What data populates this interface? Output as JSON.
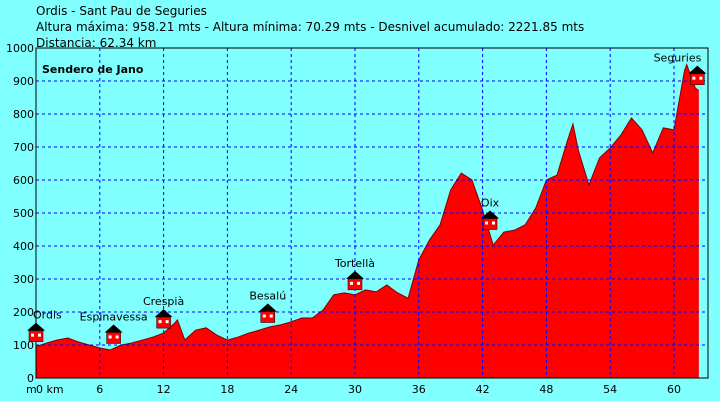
{
  "chart_data": {
    "type": "area",
    "header_lines": [
      "Ordis - Sant Pau de Seguries",
      "Altura máxima: 958.21 mts - Altura mínima: 70.29 mts - Desnivel acumulado: 2221.85 mts",
      "Distancia: 62.34 km"
    ],
    "title": "Sendero de Jano",
    "y_label": "m",
    "color": "#ff0000",
    "grid": true,
    "xlim": [
      0,
      63.2
    ],
    "ylim": [
      0,
      1000
    ],
    "xticks": [
      {
        "value": 0,
        "label": "0 km"
      },
      6,
      12,
      18,
      24,
      30,
      36,
      42,
      48,
      54,
      60
    ],
    "yticks": [
      0,
      100,
      200,
      300,
      400,
      500,
      600,
      700,
      800,
      900,
      1000
    ],
    "x": [
      0,
      1,
      2,
      3,
      4,
      5,
      6,
      7,
      8,
      9,
      10,
      11,
      12,
      13,
      13.3,
      14,
      15,
      16,
      17,
      18,
      19,
      20,
      21,
      22,
      23,
      24,
      25,
      26,
      27,
      28,
      29,
      30,
      31,
      32,
      33,
      34,
      35,
      36,
      37,
      38,
      39,
      40,
      41,
      42,
      43,
      44,
      45,
      46,
      47,
      48,
      49,
      50,
      50.5,
      51,
      52,
      53,
      54,
      55,
      56,
      57,
      58,
      59,
      60,
      61,
      61.2,
      62,
      62.34
    ],
    "values": [
      95,
      106,
      115,
      121,
      109,
      100,
      91,
      85,
      100,
      106,
      115,
      124,
      136,
      165,
      176,
      115,
      145,
      152,
      130,
      115,
      124,
      136,
      145,
      155,
      161,
      170,
      182,
      182,
      206,
      252,
      258,
      252,
      267,
      261,
      282,
      258,
      242,
      358,
      418,
      464,
      570,
      621,
      600,
      509,
      403,
      442,
      448,
      464,
      515,
      600,
      615,
      721,
      770,
      691,
      585,
      667,
      697,
      736,
      788,
      752,
      682,
      758,
      752,
      933,
      950,
      879,
      870
    ],
    "waypoints": [
      {
        "name": "Ordis",
        "x": 0
      },
      {
        "name": "Espinavessa",
        "x": 7.3
      },
      {
        "name": "Crespià",
        "x": 12
      },
      {
        "name": "Besalú",
        "x": 21.8
      },
      {
        "name": "Tortellà",
        "x": 30
      },
      {
        "name": "Oix",
        "x": 42.7
      },
      {
        "name": "Seguries",
        "x": 62.2
      }
    ]
  }
}
